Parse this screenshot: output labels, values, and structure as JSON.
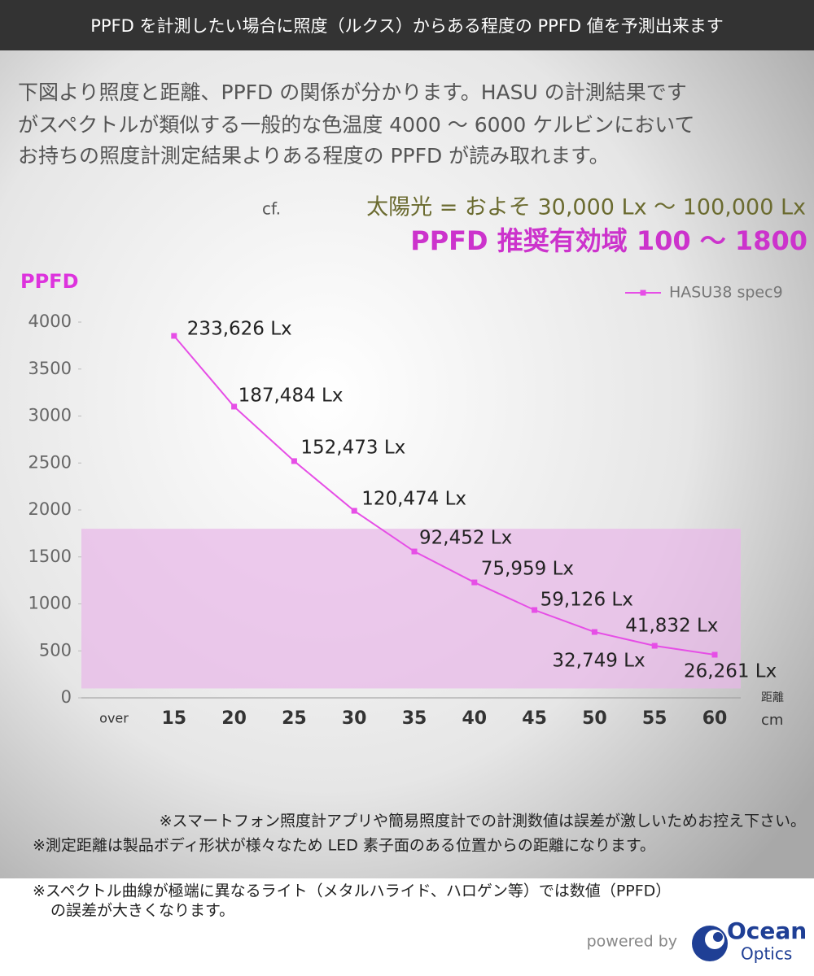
{
  "header": {
    "title": "PPFD を計測したい場合に照度（ルクス）からある程度の PPFD 値を予測出来ます"
  },
  "intro": [
    "下図より照度と距離、PPFD の関係が分かります。HASU の計測結果です",
    "がスペクトルが類似する一般的な色温度 4000 ～ 6000 ケルビンにおいて",
    "お持ちの照度計測定結果よりある程度の PPFD が読み取れます。"
  ],
  "reference": {
    "prefix": "cf.",
    "text": "太陽光 = およそ 30,000 Lx ～ 100,000 Lx"
  },
  "recommended": "PPFD 推奨有効域 100 ～ 1800",
  "chart_data": {
    "type": "line",
    "y_label": "PPFD",
    "x_label": "距離",
    "x_unit": "cm",
    "categories": [
      "over",
      "15",
      "20",
      "25",
      "30",
      "35",
      "40",
      "45",
      "50",
      "55",
      "60"
    ],
    "series": [
      {
        "name": "HASU38 spec9",
        "color": "#e64ee6",
        "values": [
          null,
          3853,
          3100,
          2520,
          1991,
          1558,
          1229,
          935,
          701,
          554,
          459
        ],
        "point_labels": [
          null,
          "233,626 Lx",
          "187,484 Lx",
          "152,473 Lx",
          "120,474 Lx",
          "92,452 Lx",
          "75,959 Lx",
          "59,126 Lx",
          "32,749 Lx",
          "41,832 Lx",
          "26,261 Lx"
        ]
      }
    ],
    "ylim": [
      0,
      4000
    ],
    "yticks": [
      0,
      500,
      1000,
      1500,
      2000,
      2500,
      3000,
      3500,
      4000
    ],
    "band": {
      "range": [
        100,
        1800
      ],
      "color": "#e8b6e8"
    },
    "legend": "top-right"
  },
  "notes": [
    "※スマートフォン照度計アプリや簡易照度計での計測数値は誤差が激しいためお控え下さい。",
    "※測定距離は製品ボディ形状が様々なため LED 素子面のある位置からの距離になります。",
    "※スペクトル曲線が極端に異なるライト（メタルハライド、ハロゲン等）では数値（PPFD）",
    "の誤差が大きくなります。"
  ],
  "footer": {
    "powered_by": "powered by",
    "logo": [
      "Ocean",
      "Optics"
    ]
  }
}
